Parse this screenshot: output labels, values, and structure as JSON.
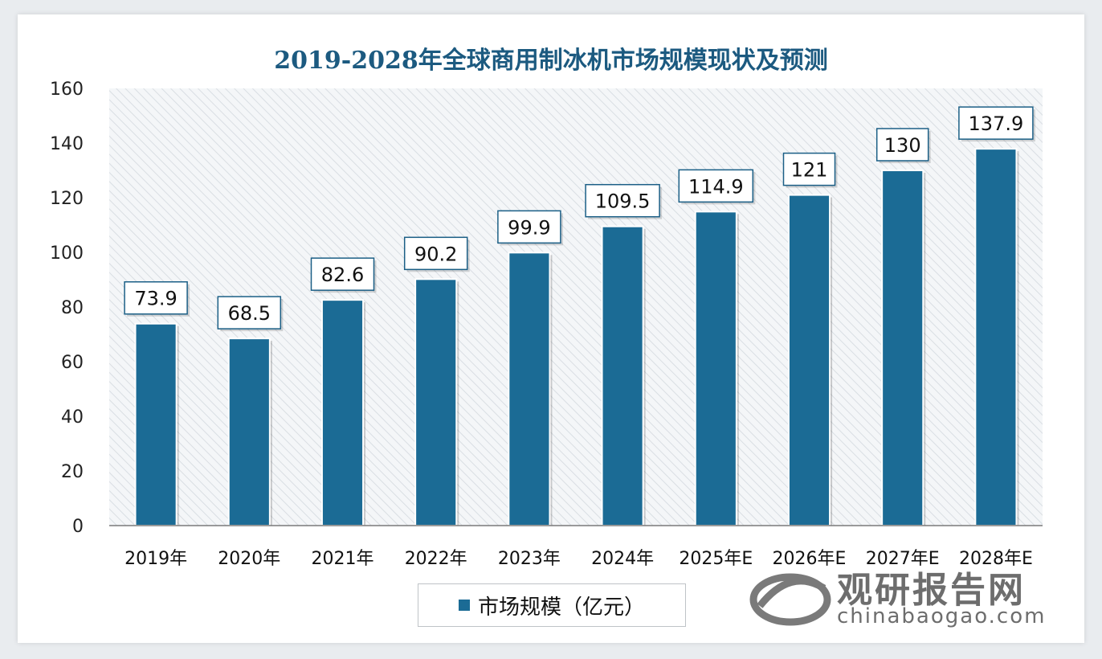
{
  "title": "2019-2028年全球商用制冰机市场规模现状及预测",
  "watermark": {
    "cn": "观研报告网",
    "en": "chinabaogao.com"
  },
  "brand": {
    "cn": "观研报告网",
    "en": "chinabaogao.com"
  },
  "colors": {
    "bar": "#1b6b95",
    "title": "#1c5a80"
  },
  "chart_data": {
    "type": "bar",
    "title": "2019-2028年全球商用制冰机市场规模现状及预测",
    "categories": [
      "2019年",
      "2020年",
      "2021年",
      "2022年",
      "2023年",
      "2024年",
      "2025年E",
      "2026年E",
      "2027年E",
      "2028年E"
    ],
    "series": [
      {
        "name": "市场规模（亿元）",
        "values": [
          73.9,
          68.5,
          82.6,
          90.2,
          99.9,
          109.5,
          114.9,
          121,
          130,
          137.9
        ]
      }
    ],
    "data_labels": [
      "73.9",
      "68.5",
      "82.6",
      "90.2",
      "99.9",
      "109.5",
      "114.9",
      "121",
      "130",
      "137.9"
    ],
    "ylim": [
      0,
      160
    ],
    "yticks": [
      0,
      20,
      40,
      60,
      80,
      100,
      120,
      140,
      160
    ],
    "grid": false,
    "legend": "bottom"
  }
}
